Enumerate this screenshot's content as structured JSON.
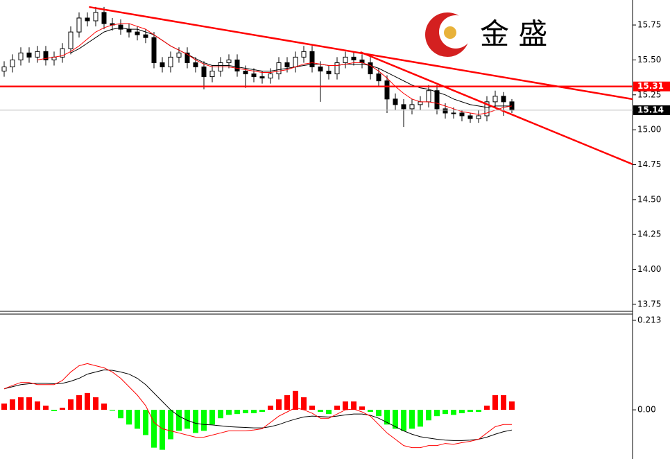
{
  "logo": {
    "text": "金 盛"
  },
  "chart_data": [
    {
      "type": "candlestick",
      "open": [
        15.42,
        15.45,
        15.5,
        15.55,
        15.52,
        15.56,
        15.5,
        15.52,
        15.58,
        15.7,
        15.8,
        15.78,
        15.84,
        15.76,
        15.75,
        15.72,
        15.7,
        15.68,
        15.66,
        15.48,
        15.45,
        15.52,
        15.55,
        15.48,
        15.45,
        15.38,
        15.42,
        15.48,
        15.5,
        15.42,
        15.4,
        15.38,
        15.37,
        15.4,
        15.48,
        15.45,
        15.52,
        15.56,
        15.45,
        15.42,
        15.4,
        15.48,
        15.52,
        15.5,
        15.48,
        15.4,
        15.35,
        15.22,
        15.18,
        15.15,
        15.18,
        15.2,
        15.28,
        15.15,
        15.12,
        15.12,
        15.1,
        15.08,
        15.1,
        15.2,
        15.24,
        15.2
      ],
      "high": [
        15.49,
        15.54,
        15.59,
        15.59,
        15.6,
        15.6,
        15.56,
        15.62,
        15.74,
        15.84,
        15.84,
        15.88,
        15.88,
        15.8,
        15.79,
        15.76,
        15.74,
        15.72,
        15.7,
        15.52,
        15.56,
        15.59,
        15.59,
        15.52,
        15.49,
        15.46,
        15.52,
        15.54,
        15.54,
        15.46,
        15.44,
        15.42,
        15.44,
        15.52,
        15.52,
        15.56,
        15.6,
        15.6,
        15.49,
        15.46,
        15.52,
        15.56,
        15.56,
        15.54,
        15.52,
        15.44,
        15.39,
        15.26,
        15.22,
        15.22,
        15.24,
        15.32,
        15.32,
        15.19,
        15.16,
        15.14,
        15.12,
        15.14,
        15.24,
        15.28,
        15.27,
        15.22
      ],
      "low": [
        15.38,
        15.41,
        15.46,
        15.48,
        15.48,
        15.46,
        15.46,
        15.48,
        15.54,
        15.66,
        15.74,
        15.74,
        15.72,
        15.71,
        15.68,
        15.66,
        15.64,
        15.62,
        15.44,
        15.41,
        15.41,
        15.48,
        15.44,
        15.41,
        15.29,
        15.34,
        15.38,
        15.44,
        15.38,
        15.3,
        15.34,
        15.33,
        15.33,
        15.36,
        15.41,
        15.41,
        15.48,
        15.41,
        15.2,
        15.36,
        15.36,
        15.44,
        15.46,
        15.44,
        15.36,
        15.31,
        15.12,
        15.14,
        15.02,
        15.11,
        15.14,
        15.16,
        15.11,
        15.08,
        15.08,
        15.06,
        15.05,
        15.05,
        15.06,
        15.16,
        15.1,
        15.12
      ],
      "close": [
        15.45,
        15.5,
        15.55,
        15.52,
        15.56,
        15.5,
        15.52,
        15.58,
        15.7,
        15.8,
        15.78,
        15.84,
        15.76,
        15.75,
        15.72,
        15.7,
        15.68,
        15.66,
        15.48,
        15.45,
        15.52,
        15.55,
        15.48,
        15.45,
        15.38,
        15.42,
        15.48,
        15.5,
        15.42,
        15.4,
        15.38,
        15.37,
        15.4,
        15.48,
        15.45,
        15.52,
        15.56,
        15.45,
        15.42,
        15.4,
        15.48,
        15.52,
        15.5,
        15.48,
        15.4,
        15.35,
        15.22,
        15.18,
        15.15,
        15.18,
        15.2,
        15.28,
        15.15,
        15.12,
        15.12,
        15.1,
        15.08,
        15.1,
        15.2,
        15.24,
        15.2,
        15.14
      ],
      "up_color": "#ffffff",
      "down_color": "#000000",
      "series": [
        {
          "color": "#000000",
          "values": [
            null,
            null,
            null,
            null,
            null,
            null,
            null,
            null,
            15.55,
            15.58,
            15.62,
            15.66,
            15.7,
            15.72,
            15.73,
            15.72,
            15.72,
            15.7,
            15.68,
            15.64,
            15.6,
            15.57,
            15.54,
            15.51,
            15.48,
            15.46,
            15.46,
            15.46,
            15.45,
            15.44,
            15.43,
            15.42,
            15.42,
            15.43,
            15.44,
            15.45,
            15.46,
            15.47,
            15.47,
            15.46,
            15.46,
            15.47,
            15.47,
            15.47,
            15.46,
            15.44,
            15.41,
            15.38,
            15.35,
            15.32,
            15.3,
            15.29,
            15.27,
            15.25,
            15.22,
            15.2,
            15.18,
            15.17,
            15.16,
            15.17,
            15.17,
            15.17
          ]
        },
        {
          "color": "#ff0000",
          "values": [
            null,
            null,
            null,
            null,
            15.5,
            15.51,
            15.52,
            15.53,
            15.56,
            15.6,
            15.65,
            15.7,
            15.73,
            15.75,
            15.76,
            15.76,
            15.74,
            15.72,
            15.68,
            15.64,
            15.6,
            15.57,
            15.54,
            15.5,
            15.47,
            15.45,
            15.45,
            15.45,
            15.44,
            15.43,
            15.42,
            15.41,
            15.41,
            15.42,
            15.43,
            15.45,
            15.47,
            15.48,
            15.47,
            15.46,
            15.46,
            15.47,
            15.48,
            15.48,
            15.46,
            15.42,
            15.37,
            15.31,
            15.26,
            15.22,
            15.2,
            15.2,
            15.19,
            15.17,
            15.15,
            15.13,
            15.12,
            15.11,
            15.12,
            15.14,
            15.16,
            15.17
          ]
        }
      ],
      "hlines": [
        {
          "value": 15.31,
          "color": "#ff0000"
        },
        {
          "value": 15.14,
          "color": "#000000"
        }
      ],
      "trendlines": [
        {
          "x": [
            10.2,
            75.5
          ],
          "y": [
            15.879,
            15.219
          ],
          "color": "#ff0000"
        },
        {
          "x": [
            42.8,
            75.5
          ],
          "y": [
            15.556,
            14.753
          ],
          "color": "#ff0000"
        }
      ],
      "ylim": [
        13.705,
        15.929
      ],
      "yticks": [
        15.75,
        {
          "value": 15.5,
          "label": "15.50"
        },
        15.25,
        {
          "value": 15,
          "label": "15.00"
        },
        14.75,
        {
          "value": 14.5,
          "label": "14.50"
        },
        14.25,
        {
          "value": 14,
          "label": "14.00"
        },
        13.75
      ]
    },
    {
      "type": "macd",
      "histogram": {
        "positive_color": "#ff0000",
        "negative_color": "#00ff00",
        "values": [
          0.015,
          0.025,
          0.03,
          0.03,
          0.02,
          0.01,
          -0.003,
          0.005,
          0.025,
          0.035,
          0.04,
          0.03,
          0.015,
          -0.002,
          -0.02,
          -0.035,
          -0.045,
          -0.06,
          -0.09,
          -0.095,
          -0.07,
          -0.05,
          -0.045,
          -0.055,
          -0.05,
          -0.035,
          -0.02,
          -0.012,
          -0.01,
          -0.008,
          -0.008,
          -0.005,
          0.01,
          0.025,
          0.035,
          0.045,
          0.03,
          0.01,
          -0.005,
          -0.01,
          0.01,
          0.02,
          0.02,
          0.008,
          -0.005,
          -0.015,
          -0.035,
          -0.045,
          -0.05,
          -0.045,
          -0.04,
          -0.025,
          -0.015,
          -0.01,
          -0.012,
          -0.008,
          -0.005,
          -0.005,
          0.01,
          0.035,
          0.035,
          0.02
        ]
      },
      "series": [
        {
          "color": "#000000",
          "values": [
            0.05,
            0.055,
            0.06,
            0.062,
            0.063,
            0.063,
            0.062,
            0.063,
            0.068,
            0.075,
            0.085,
            0.09,
            0.095,
            0.094,
            0.09,
            0.085,
            0.075,
            0.06,
            0.04,
            0.02,
            0,
            -0.015,
            -0.025,
            -0.032,
            -0.035,
            -0.036,
            -0.038,
            -0.04,
            -0.041,
            -0.042,
            -0.043,
            -0.043,
            -0.04,
            -0.035,
            -0.028,
            -0.022,
            -0.017,
            -0.015,
            -0.016,
            -0.017,
            -0.015,
            -0.012,
            -0.01,
            -0.01,
            -0.013,
            -0.02,
            -0.03,
            -0.04,
            -0.05,
            -0.058,
            -0.064,
            -0.067,
            -0.07,
            -0.072,
            -0.073,
            -0.073,
            -0.072,
            -0.07,
            -0.065,
            -0.058,
            -0.052,
            -0.048
          ]
        },
        {
          "color": "#ff0000",
          "values": [
            0.05,
            0.058,
            0.065,
            0.065,
            0.06,
            0.06,
            0.06,
            0.07,
            0.09,
            0.105,
            0.11,
            0.105,
            0.1,
            0.09,
            0.075,
            0.055,
            0.035,
            0.01,
            -0.03,
            -0.045,
            -0.05,
            -0.055,
            -0.06,
            -0.065,
            -0.065,
            -0.06,
            -0.055,
            -0.05,
            -0.05,
            -0.05,
            -0.048,
            -0.045,
            -0.03,
            -0.015,
            -0.005,
            0.005,
            0,
            -0.008,
            -0.02,
            -0.02,
            -0.01,
            0,
            0.002,
            -0.005,
            -0.015,
            -0.035,
            -0.055,
            -0.07,
            -0.085,
            -0.09,
            -0.09,
            -0.085,
            -0.085,
            -0.08,
            -0.082,
            -0.078,
            -0.075,
            -0.07,
            -0.055,
            -0.04,
            -0.035,
            -0.035
          ]
        }
      ],
      "ylim": [
        -0.117,
        0.2295
      ],
      "yticks": [
        0.213,
        {
          "value": 0,
          "label": "0.00"
        }
      ]
    }
  ]
}
